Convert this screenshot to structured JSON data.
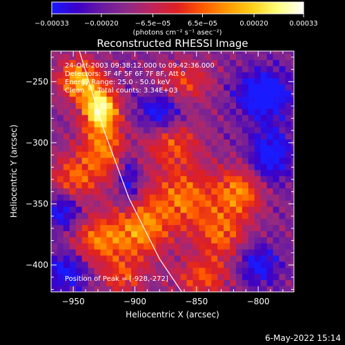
{
  "chart_data": {
    "type": "heatmap",
    "title": "Reconstructed RHESSI Image",
    "xlabel": "Heliocentric X (arcsec)",
    "ylabel": "Heliocentric Y (arcsec)",
    "xlim": [
      -968,
      -771
    ],
    "ylim": [
      -422,
      -225
    ],
    "x_ticks": [
      {
        "value": -950,
        "label": "−950"
      },
      {
        "value": -900,
        "label": "−900"
      },
      {
        "value": -850,
        "label": "−850"
      },
      {
        "value": -800,
        "label": "−800"
      }
    ],
    "y_ticks": [
      {
        "value": -250,
        "label": "−250"
      },
      {
        "value": -300,
        "label": "−300"
      },
      {
        "value": -350,
        "label": "−350"
      },
      {
        "value": -400,
        "label": "−400"
      }
    ],
    "colorbar": {
      "range": [
        -0.00033,
        0.00033
      ],
      "colors": [
        "#1a1aff",
        "#3a00c8",
        "#6a1aa0",
        "#8e2a86",
        "#c0235a",
        "#e02020",
        "#ff5a00",
        "#ff9a00",
        "#ffd21a",
        "#ffff80",
        "#ffffff"
      ],
      "ticks": [
        {
          "value": -0.00033,
          "label": "−0.00033"
        },
        {
          "value": -0.0002,
          "label": "−0.00020"
        },
        {
          "value": -6.5e-05,
          "label": "−6.5e−05"
        },
        {
          "value": 6.5e-05,
          "label": "6.5e−05"
        },
        {
          "value": 0.0002,
          "label": "0.00020"
        },
        {
          "value": 0.00033,
          "label": "0.00033"
        }
      ],
      "units_label": "(photons cm⁻² s⁻¹ asec⁻²)"
    },
    "info_lines": [
      "24-Oct-2003 09:38:12.000 to 09:42:36.000",
      "Detectors: 3F 4F 5F 6F 7F 8F, Att 0",
      "Energy Range: 25.0 - 50.0 keV",
      "Clean      Total counts: 3.34E+03"
    ],
    "peak_label": "Position of Peak = [-928,-272]",
    "peak": {
      "x": -928,
      "y": -272
    },
    "limb_curve": [
      {
        "x": -945,
        "y": -225
      },
      {
        "x": -925,
        "y": -290
      },
      {
        "x": -905,
        "y": -345
      },
      {
        "x": -880,
        "y": -395
      },
      {
        "x": -862,
        "y": -422
      }
    ],
    "heat_sources": [
      {
        "x": -928,
        "y": -272,
        "amp": 1.0,
        "sx": 10,
        "sy": 12
      },
      {
        "x": -945,
        "y": -248,
        "amp": 0.75,
        "sx": 12,
        "sy": 12
      },
      {
        "x": -925,
        "y": -305,
        "amp": 0.55,
        "sx": 14,
        "sy": 16
      },
      {
        "x": -950,
        "y": -330,
        "amp": 0.5,
        "sx": 14,
        "sy": 14
      },
      {
        "x": -930,
        "y": -380,
        "amp": 0.55,
        "sx": 16,
        "sy": 14
      },
      {
        "x": -895,
        "y": -370,
        "amp": 0.6,
        "sx": 16,
        "sy": 18
      },
      {
        "x": -860,
        "y": -345,
        "amp": 0.55,
        "sx": 18,
        "sy": 18
      },
      {
        "x": -870,
        "y": -300,
        "amp": 0.45,
        "sx": 16,
        "sy": 14
      },
      {
        "x": -815,
        "y": -340,
        "amp": 0.6,
        "sx": 14,
        "sy": 14
      },
      {
        "x": -830,
        "y": -375,
        "amp": 0.5,
        "sx": 14,
        "sy": 14
      },
      {
        "x": -860,
        "y": -250,
        "amp": 0.4,
        "sx": 16,
        "sy": 12
      },
      {
        "x": -845,
        "y": -410,
        "amp": 0.45,
        "sx": 16,
        "sy": 12
      },
      {
        "x": -910,
        "y": -410,
        "amp": 0.4,
        "sx": 12,
        "sy": 10
      },
      {
        "x": -795,
        "y": -260,
        "amp": -0.6,
        "sx": 16,
        "sy": 14
      },
      {
        "x": -790,
        "y": -310,
        "amp": -0.55,
        "sx": 12,
        "sy": 16
      },
      {
        "x": -958,
        "y": -355,
        "amp": -0.5,
        "sx": 10,
        "sy": 12
      },
      {
        "x": -955,
        "y": -405,
        "amp": -0.5,
        "sx": 12,
        "sy": 12
      },
      {
        "x": -905,
        "y": -330,
        "amp": -0.45,
        "sx": 6,
        "sy": 16
      },
      {
        "x": -880,
        "y": -275,
        "amp": -0.5,
        "sx": 12,
        "sy": 12
      },
      {
        "x": -800,
        "y": -400,
        "amp": -0.45,
        "sx": 12,
        "sy": 12
      }
    ]
  },
  "footer": {
    "date_stamp": "6-May-2022 15:14"
  }
}
